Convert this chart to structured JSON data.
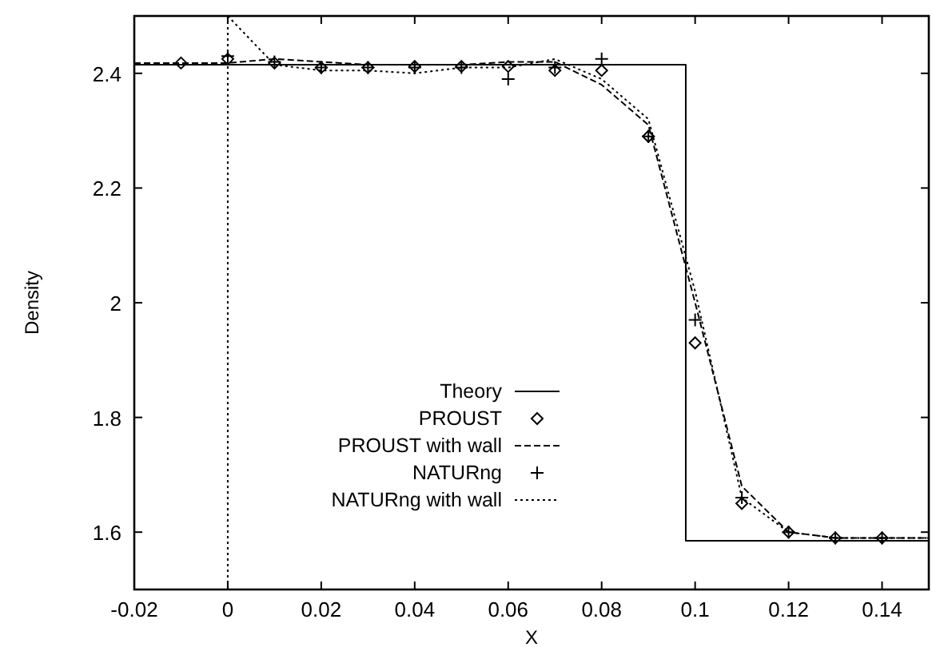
{
  "chart_data": {
    "type": "line",
    "xlabel": "X",
    "ylabel": "Density",
    "xlim": [
      -0.02,
      0.15
    ],
    "ylim": [
      1.5,
      2.5
    ],
    "xticks": [
      -0.02,
      0,
      0.02,
      0.04,
      0.06,
      0.08,
      0.1,
      0.12,
      0.14
    ],
    "yticks": [
      1.6,
      1.8,
      2,
      2.2,
      2.4
    ],
    "grid": false,
    "legend": "bottom left",
    "ref_lines": [
      {
        "axis": "x",
        "value": 0,
        "line_style": "dotted",
        "color": "#000000"
      }
    ],
    "series": [
      {
        "name": "Theory",
        "color": "#000000",
        "line_style": "solid",
        "marker": "none",
        "x": [
          -0.02,
          0.098,
          0.098,
          0.15
        ],
        "values": [
          2.415,
          2.415,
          1.585,
          1.585
        ]
      },
      {
        "name": "PROUST",
        "type": "scatter",
        "color": "#000000",
        "marker": "diamond",
        "x": [
          -0.01,
          0,
          0.01,
          0.02,
          0.03,
          0.04,
          0.05,
          0.06,
          0.07,
          0.08,
          0.09,
          0.1,
          0.11,
          0.12,
          0.13,
          0.14
        ],
        "values": [
          2.418,
          2.425,
          2.418,
          2.41,
          2.41,
          2.412,
          2.412,
          2.412,
          2.405,
          2.405,
          2.29,
          1.93,
          1.65,
          1.6,
          1.59,
          1.59
        ]
      },
      {
        "name": "PROUST with wall",
        "color": "#000000",
        "line_style": "dashed",
        "marker": "none",
        "x": [
          -0.02,
          0,
          0.01,
          0.02,
          0.03,
          0.04,
          0.05,
          0.06,
          0.07,
          0.08,
          0.09,
          0.1,
          0.11,
          0.12,
          0.13,
          0.14,
          0.15
        ],
        "values": [
          2.418,
          2.418,
          2.425,
          2.42,
          2.415,
          2.415,
          2.415,
          2.42,
          2.42,
          2.38,
          2.31,
          2.0,
          1.68,
          1.6,
          1.59,
          1.59,
          1.59
        ]
      },
      {
        "name": "NATURng",
        "type": "scatter",
        "color": "#000000",
        "marker": "cross",
        "x": [
          0,
          0.01,
          0.02,
          0.03,
          0.04,
          0.05,
          0.06,
          0.07,
          0.08,
          0.09,
          0.1,
          0.11,
          0.12,
          0.13,
          0.14
        ],
        "values": [
          2.43,
          2.42,
          2.41,
          2.41,
          2.41,
          2.41,
          2.39,
          2.41,
          2.425,
          2.29,
          1.97,
          1.66,
          1.6,
          1.59,
          1.59
        ]
      },
      {
        "name": "NATURng with wall",
        "color": "#000000",
        "line_style": "dotted",
        "marker": "none",
        "x": [
          0,
          0.01,
          0.02,
          0.03,
          0.04,
          0.05,
          0.06,
          0.07,
          0.08,
          0.09,
          0.1,
          0.11,
          0.12,
          0.13,
          0.14,
          0.15
        ],
        "values": [
          2.5,
          2.415,
          2.405,
          2.405,
          2.4,
          2.41,
          2.41,
          2.425,
          2.39,
          2.32,
          2.02,
          1.66,
          1.6,
          1.59,
          1.59,
          1.59
        ]
      }
    ]
  }
}
